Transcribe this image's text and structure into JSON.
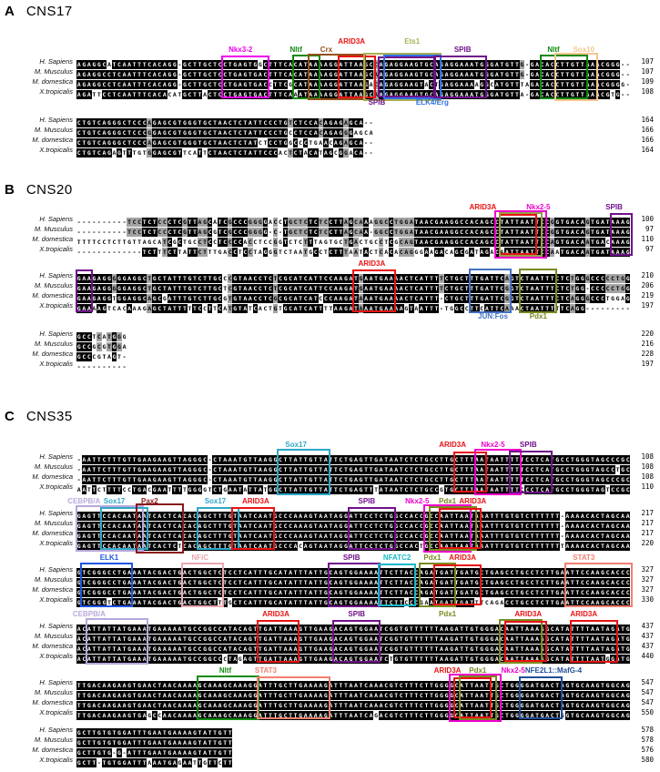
{
  "panels": [
    {
      "letter": "A",
      "name": "CNS17",
      "species": [
        "H. Sapiens",
        "M. Musculus",
        "M. domestica",
        "X.tropicalis"
      ],
      "blocks": [
        {
          "label_rows": 2,
          "sequences": [
            "AGAGGCATCAATTTCACAGG-GCTTGCTCCTGAGTGGCTTTCACATAAAAGGATTAAGCCAGAGGAAGTGCAGAGGAAATGGGATGTTG-GACACCTTGTTAAACGGG--",
            "AGAGGCCTCAATTTCACAGG-GCTTGCTCCTGAGTGACTTTCACATAAAAGGATTAAGCAAGAGGAAGTGCAGAGGAAATGGGATGTTG-GACACCTTGTTAAACGGG--",
            "AGAGGCCTCAATTTCACAGG-GCTTGCTCCTGAGTGACCTTCGCATAAAAGGATTAAGACAGAGGAAGTACTGAGGAAAAGGCATGTTTAGACACCTTGTTAAACGGGG-",
            "AGATTCCTCAATTTCACACATGCTTACTCCTGAGTGACTTTCAAATAAAAGGATTAAGCAAGAGGAAGTGCAGAGGAAATGGGATGTTA-GACACCTTGTTAAACGTG--"
          ],
          "numbers": [
            "107",
            "107",
            "109",
            "108"
          ],
          "annotations": [
            {
              "label": "Nkx3-2",
              "color": "#ee00ee",
              "start": 30,
              "end": 38,
              "row": 0,
              "grow": 0,
              "label_col": 33
            },
            {
              "label": "Nltf",
              "color": "#0f8a0f",
              "start": 44,
              "end": 48,
              "row": 0,
              "grow": 1,
              "label_col": 44
            },
            {
              "label": "Crx",
              "color": "#96511a",
              "start": 47,
              "end": 57,
              "row": 0,
              "grow": 2,
              "label_col": 50
            },
            {
              "label": "ARID3A",
              "color": "#e81212",
              "start": 53,
              "end": 59,
              "row": 1,
              "grow": 0,
              "label_col": 55
            },
            {
              "label": "Ets1",
              "color": "#a8b054",
              "start": 58,
              "end": 72,
              "row": 1,
              "grow": 3,
              "label_col": 67
            },
            {
              "label": "SPIB",
              "color": "#70108a",
              "start": 61,
              "end": 71,
              "grow": -1,
              "side": "below",
              "label_col": 60
            },
            {
              "label": "ELK4/Erg",
              "color": "#2f6fe4",
              "start": 62,
              "end": 72,
              "grow": 1,
              "side": "below",
              "label_col": 71
            },
            {
              "label": "SPIB",
              "color": "#70108a",
              "start": 72,
              "end": 81,
              "row": 0,
              "grow": 0,
              "label_col": 77
            },
            {
              "label": "Nltf",
              "color": "#0f8a0f",
              "start": 93,
              "end": 101,
              "row": 0,
              "grow": 1,
              "label_col": 95
            },
            {
              "label": "Sox10",
              "color": "#f5c68f",
              "start": 96,
              "end": 103,
              "row": 0,
              "grow": 3,
              "label_col": 101
            }
          ]
        },
        {
          "label_rows": 0,
          "sequences": [
            "CTGTCAGGGCTCCCAGAGCGTGGGTGCTAACTCTATTCCCTGTCTCCACAGAGAGCA--",
            "CTGTCAGGGCTCCCGGAGCGTGGGTGCTAACTCTATTCCCTGCCTCCACAGAGGGAGCA",
            "CTGTCAGGGCTCCCAGAGCGTGGGTGCTAACTCTATCTCCTGGCCCTGAACAGAGCA--",
            "CTGTCAGAGTTTGTGGAGCGTTCATTCTAACTCTATTCCCACTCTACATAGCGGACA--"
          ],
          "numbers": [
            "164",
            "166",
            "166",
            "164"
          ],
          "annotations": []
        }
      ]
    },
    {
      "letter": "B",
      "name": "CNS20",
      "species": [
        "H. Sapiens",
        "M. Musculus",
        "M. domestica",
        "X.tropicalis"
      ],
      "blocks": [
        {
          "label_rows": 1,
          "sequences": [
            "----------TCCTCTCCCTCGTTAGCATCGCCCGGGGACCTGCTCTCTCCTTAGCAAAGGCCTGGATAACGAAGGCCACAGCCTATTAATTCCGGTGACAGTGATAAAG",
            "----------TCCTCTCCCTCGTTAGCGTCGCCCGGGG-C-TGCTCTCTCCTTAGCAA-GGCCTGGATAACGAAGGCCACAGCCTATTAATTCCGGTGACAGTGATAAAG",
            "TTTTCCTCTTGTTAGCATCGCTGCCTCCTCCCCACCTCCGGTCTCTTTAGTGCTGACTGCCTCGCAGTAACGAAGGCCACAGCCTATTAATTCCAGTGACAATGACAAAG",
            "-------------TCTTTCTTATTCTTTGACCTCCTAGGGTCTAATGCCTCTTTAATACTCACACAGGGAAGACAGCGATAGACAATTAATTCCAATGACAATGATAAAG"
          ],
          "numbers": [
            "100",
            "97",
            "110",
            "97"
          ],
          "annotations": [
            {
              "label": "ARID3A",
              "color": "#e81212",
              "start": 85,
              "end": 91,
              "row": 0,
              "grow": -1,
              "label_col": 81
            },
            {
              "color": "#98a04a",
              "start": 85,
              "end": 92,
              "grow": 1
            },
            {
              "label": "Nkx2-5",
              "color": "#ee00cc",
              "start": 84,
              "end": 93,
              "row": 0,
              "grow": 3,
              "label_col": 92
            },
            {
              "label": "SPIB",
              "color": "#70108a",
              "start": 107,
              "end": 110,
              "row": 0,
              "grow": 0,
              "label_col": 107
            }
          ]
        },
        {
          "label_rows": 1,
          "sequences": [
            "GAAGAGGGGGAGGCTGCTATTTGTCTTGCCCGTAACCTCTCGCATCATTCCAAGATGAATGAAAACTCATTTTCTGCTTTGATTCAGTCTAATTTCTCTGGGCCCCCTGG",
            "GAAGAGGGGGAGGCTGCTATTTGTCTTGCTCGTAACCTCTCGCATCATTCCAAGATGAATGAAAACTCATTTTCTGCTTTGATTCGGTCTAATTTCTCTGG-CCCCCTGG",
            "GAAGAGGTGGAGGCAGCGATTTGTCTTGCGTGTAACCTCGCGCATCATCCCAAGATAAATGAAAACTCATTT-CTGCTTTGATTCGGTCTAATTTCTCAGGGCCCTGGAG",
            "GAAAAGTCACAAAGAGCTATTTTTCCTTCATGTATCACTGTGCATCATTTTAAGATAAATGAAAAGTAATTT-TGGCCTTCATTCAAACTAATTTTTCAGG---------"
          ],
          "numbers": [
            "210",
            "206",
            "219",
            "197"
          ],
          "annotations": [
            {
              "color": "#70108a",
              "start": 1,
              "end": 3,
              "grow": 0
            },
            {
              "label": "ARID3A",
              "color": "#e81212",
              "start": 56,
              "end": 63,
              "row": 0,
              "grow": 0,
              "label_col": 59
            },
            {
              "label": "JUN:Fos",
              "color": "#4472c4",
              "start": 79,
              "end": 86,
              "side": "below",
              "grow": 1,
              "label_col": 83
            },
            {
              "label": "Pdx1",
              "color": "#7a8a20",
              "start": 89,
              "end": 95,
              "side": "below",
              "grow": 1,
              "label_col": 92
            }
          ]
        },
        {
          "label_rows": 0,
          "sequences": [
            "GCCTCATGGG",
            "GCCGCGTGGA",
            "GCCCGTAGT-",
            "----------"
          ],
          "numbers": [
            "220",
            "216",
            "228",
            "197"
          ],
          "annotations": []
        }
      ]
    },
    {
      "letter": "C",
      "name": "CNS35",
      "species": [
        "H. Sapiens",
        "M. Musculus",
        "M. domestica",
        "X.tropicalis"
      ],
      "blocks": [
        {
          "label_rows": 1,
          "sequences": [
            "-AATTCTTTGTTGAAGAAGTTAGGGC-CTAAATGTTAAGGCTTATTGTTATTCTGAGTTGATAATCTCTGCCTTGCTTTAATAATTTTTCCTCATGCCTGGGTAGCCCGC",
            "-AATTCTTTGTTGAAGAAGTTAGGGC-CTAAATGTTAAGGCTTATTGTTATTCTGAGTTGATAATCTCTGCCTTGCTTTAATAATTTTTCCTCATGCCTGGGTAGCCTGC",
            "-AATTCTTTGTTGAAGAAGTTAGGGC-CTAAATGTTAAGGCTTATTGTTATTCTGAGTTGATAATCTCTGCCTTGCTTTAATAATTTTTCCTCATGCCTGGGTAGCCCGC",
            "AATTCTTTTCCTGACGAATTTTGGGGTCTGAATATTATGGCTTATTGTTATTCTGAGTTTATAATCTCTGCCGTGCTTTAATAATTTTCCCTCATGCCTGGGTAGTCCGC"
          ],
          "numbers": [
            "108",
            "108",
            "108",
            "110"
          ],
          "annotations": [
            {
              "label": "Sox17",
              "color": "#2fa8c8",
              "start": 41,
              "end": 50,
              "row": 0,
              "grow": 2,
              "label_col": 44
            },
            {
              "label": "ARID3A",
              "color": "#e81212",
              "start": 76,
              "end": 81,
              "row": 0,
              "grow": -1,
              "label_col": 75
            },
            {
              "label": "Nkx2-5",
              "color": "#ee00cc",
              "start": 80,
              "end": 88,
              "row": 0,
              "grow": 2,
              "label_col": 83
            },
            {
              "label": "SPIB",
              "color": "#70108a",
              "start": 87,
              "end": 94,
              "row": 0,
              "grow": 0,
              "label_col": 90
            }
          ]
        },
        {
          "label_rows": 1,
          "sequences": [
            "GAGTTCCACAATAATCACTCACACAGCTTTGTAATCAATGCCCAAAGTAATAGGATTCCTCTGGCCACCGCCAATTAATAAATTTGTGTCTTTTTT-AAAACACTAGCAA",
            "GAGTTCCACAATAATCACTCACACAGCTTTGTAATCAATGCCCAAAGTAATAGGATTCCTCTGGCCACCGCCAATTAATAAATTTGTGTCTTTTTT-AAAACACTAGCAA",
            "GAGTTCCACAATAATCACTCACACAGCTTTGTAATCAATGCCCAAAGTAATAGGATTCCTCTGGCCACCGCCAATTAATAAATTTGTGTCTTTTTT-AAAACACTAGCAA",
            "GAGTTCCACAATAATCACTCTCACAGCTTTGTAATCAATGCCCACAGTAATAGGATTCCTCTGGCCACTGCCAATTAATAAATTTGTGTCTTTTTTTAAAACACTAGCAA"
          ],
          "numbers": [
            "217",
            "217",
            "217",
            "220"
          ],
          "annotations": [
            {
              "label": "CEBPB/A",
              "color": "#b8a8dc",
              "start": 1,
              "end": 13,
              "row": 0,
              "grow": 2,
              "label_col": 2
            },
            {
              "label": "Sox17",
              "color": "#2fa8c8",
              "start": 6,
              "end": 14,
              "row": 0,
              "grow": 0,
              "label_col": 8
            },
            {
              "label": "Pax2",
              "color": "#8a1a1a",
              "start": 13,
              "end": 21,
              "row": 0,
              "grow": 4,
              "label_col": 15
            },
            {
              "label": "Sox17",
              "color": "#2fa8c8",
              "start": 25,
              "end": 32,
              "row": 0,
              "grow": 0,
              "label_col": 28
            },
            {
              "label": "ARID3A",
              "color": "#e81212",
              "start": 32,
              "end": 39,
              "row": 0,
              "grow": 0,
              "label_col": 36
            },
            {
              "label": "SPIB",
              "color": "#70108a",
              "start": 55,
              "end": 63,
              "row": 0,
              "grow": 0,
              "label_col": 58
            },
            {
              "label": "Nkx2-5",
              "color": "#ee00cc",
              "start": 70,
              "end": 78,
              "row": 0,
              "grow": 3,
              "label_col": 68
            },
            {
              "label": "Pdx1",
              "color": "#7a8a20",
              "start": 71,
              "end": 79,
              "row": 0,
              "grow": 1,
              "label_col": 74
            },
            {
              "label": "ARID3A",
              "color": "#e81212",
              "start": 73,
              "end": 80,
              "row": 0,
              "grow": -1,
              "label_col": 79
            }
          ]
        },
        {
          "label_rows": 1,
          "sequences": [
            "GTCGGGCCTGAAATACGACTGACTGGCTCTCCTCATTTGCATATTTATTGCAGTGGAAAATTCTTACCAGATGATTGATGCTGAGCCTGCCTCTTGAATTCCAAGCACCC",
            "GTCGGGCCTGAAATACGACTGACTGGCTCTCCTCATTTGCATATTTATTGCAGTGGAAAATTCTTACCAGATGATTGATGCTGAGCCTGCCTCTTGAATTCCAAGCACCC",
            "GTCGGGCCTGAAATACGACTGACTGGCTCTCCTCATTTGCATATTTATTGCAGTGGAAAATTCTTACCAGATGATTGATGCTGAGCCTGCCTCTTGAATTCCAAGCACCC",
            "GTCGGGTCTGAAATACGACTGACTGGCTTTGCTCATTTGCATATTTATTGCAGTGGAAAATTCTTCCCGAATGATTGATTTCAGACCTGCCTCTTGAATTCCAAGCACCC"
          ],
          "numbers": [
            "327",
            "327",
            "327",
            "330"
          ],
          "annotations": [
            {
              "label": "ELK1",
              "color": "#1f55e0",
              "start": 2,
              "end": 11,
              "row": 0,
              "grow": 1,
              "label_col": 7
            },
            {
              "label": "NFIC",
              "color": "#eaa8b0",
              "start": 22,
              "end": 29,
              "row": 0,
              "grow": 1,
              "label_col": 25
            },
            {
              "label": "SPIB",
              "color": "#70108a",
              "start": 51,
              "end": 60,
              "row": 0,
              "grow": 1,
              "label_col": 55
            },
            {
              "label": "NFATC2",
              "color": "#18b8c8",
              "start": 61,
              "end": 67,
              "row": 0,
              "grow": 0,
              "label_col": 64
            },
            {
              "label": "Pdx1",
              "color": "#7a8a20",
              "start": 69,
              "end": 75,
              "row": 0,
              "grow": 1,
              "label_col": 71
            },
            {
              "label": "ARID3A",
              "color": "#e81212",
              "start": 72,
              "end": 80,
              "row": 0,
              "grow": -1,
              "label_col": 77
            },
            {
              "label": "STAT3",
              "color": "#f28070",
              "start": 98,
              "end": 110,
              "row": 0,
              "grow": 1,
              "label_col": 101
            }
          ]
        },
        {
          "label_rows": 1,
          "sequences": [
            "ACATTATTATGAAATGAAAAATGCCGGCCATACAGTTGATTAAAGTTGAAGACAGTGGAATCGGTGTTTTTTAAGATTGTGGGACAATTAAAGGCATATTTTAATAGATG",
            "ACATTATTATGAAATGAAAAATGCCGGCCATACAGTTGATTAAAGTTGAAGACAGTGGAATCGGTGTTTTTTAAGATTGTGGGACAATTAAAGGCATATTTTAATAGATG",
            "ACATTATTATGAAATGAAAAATGCCGGCCATACAGTTGATTAAAGTTGAAGACAGTGGAATCGGTGTTTTTTAAGATTGTGGGACAATTAAAGGCATATTTTAATAGATG",
            "ACATTATTATGAAATGAAAAATGCCGGCCCTAGAGTTGATTAAAGTTGAAGACAGTGGAATCTGTGTTTTTTAAGATTGTGGGACAATTAAAGGCATATTTTAATGGATG"
          ],
          "numbers": [
            "437",
            "437",
            "437",
            "440"
          ],
          "annotations": [
            {
              "label": "CEBPB/A",
              "color": "#b8a8dc",
              "start": 3,
              "end": 14,
              "row": 0,
              "grow": 2,
              "label_col": 3
            },
            {
              "label": "ARID3A",
              "color": "#e81212",
              "start": 37,
              "end": 44,
              "row": 0,
              "grow": 0,
              "label_col": 40
            },
            {
              "label": "SPIB",
              "color": "#70108a",
              "start": 52,
              "end": 60,
              "row": 0,
              "grow": 0,
              "label_col": 56
            },
            {
              "label": "Pdx1",
              "color": "#7a8a20",
              "start": 85,
              "end": 92,
              "row": 0,
              "grow": 1,
              "label_col": 74
            },
            {
              "label": "ARID3A",
              "color": "#e81212",
              "start": 86,
              "end": 93,
              "row": 0,
              "grow": -1,
              "label_col": 90
            },
            {
              "label": "ARID3A",
              "color": "#e81212",
              "start": 99,
              "end": 107,
              "row": 0,
              "grow": 0,
              "label_col": 101
            }
          ]
        },
        {
          "label_rows": 1,
          "sequences": [
            "TTGACAAGAAGTGAACTAACAAAAGCAAAGCAAAGGATTTGCTTGAAAAGATTTAATCAAACGTCTTTCTTGGGGCATTAATTGCTGGGGATGACTAGTGCAAGTGGCAG",
            "TTGACAAGAAGTGAACTAACAAAAGCAAAGCAAAGGATTTGCTTGAAAAGATTTAATCAAACGTCTTTCTTGGGGCATTAATTGCTGGGGATGACTAGTGCAAGTGGCAG",
            "TTGACAAGAAGTGAACTAACAAAAGCAAAGCAAAGGATTTGCTTGAAAAGATTTAATCAAACGTCTTTCTTGGGGCATTAATTGCTGGGGATGACTAGTGCAAGTGGCAG",
            "TTGACAAGAAGTGAGCCAACAAAAGCAAAGCAAAGGATTTGCTTGAAAAGATTTAATCAGACGTCTTTCTTGGGGCATTAATTGCTGGGGATGACTGGTGCAAGTGGCAG"
          ],
          "numbers": [
            "547",
            "547",
            "547",
            "550"
          ],
          "annotations": [
            {
              "label": "Nltf",
              "color": "#0f8a0f",
              "start": 25,
              "end": 36,
              "row": 0,
              "grow": 1,
              "label_col": 30
            },
            {
              "label": "STAT3",
              "color": "#f28070",
              "start": 37,
              "end": 50,
              "row": 0,
              "grow": 0,
              "label_col": 38
            },
            {
              "label": "ARID3A",
              "color": "#e81212",
              "start": 76,
              "end": 82,
              "row": 0,
              "grow": -1,
              "label_col": 74
            },
            {
              "label": "Pdx1",
              "color": "#7a8a20",
              "start": 77,
              "end": 83,
              "row": 0,
              "grow": 1,
              "label_col": 80
            },
            {
              "label": "Nkx2-5",
              "color": "#ee00cc",
              "start": 75,
              "end": 84,
              "row": 0,
              "grow": 3,
              "label_col": 87
            },
            {
              "label": "NFE2L1::MafG-4",
              "color": "#1f4e99",
              "start": 89,
              "end": 96,
              "row": 0,
              "grow": 0,
              "label_col": 95
            }
          ]
        },
        {
          "label_rows": 0,
          "sequences": [
            "GCTTGTGTGGATTTGAATGAAAAGTATTGTT",
            "GCTTGTGTGGATTTGAATGAAAAGTATTGTT",
            "GCTTGTG-G-ATTTGAATGAAAAGTATTGTT",
            "GCTT-TGTGGATTTAAATGAGAATTGTTCTT"
          ],
          "numbers": [
            "578",
            "578",
            "576",
            "580"
          ],
          "annotations": []
        }
      ]
    }
  ],
  "shading": {
    "conserved_bg": "#000000",
    "conserved_text": "#ffffff",
    "partial_bg": "#a3a3a3",
    "partial_text": "#000000",
    "mismatch_bg": "#ffffff",
    "mismatch_text": "#000000"
  }
}
